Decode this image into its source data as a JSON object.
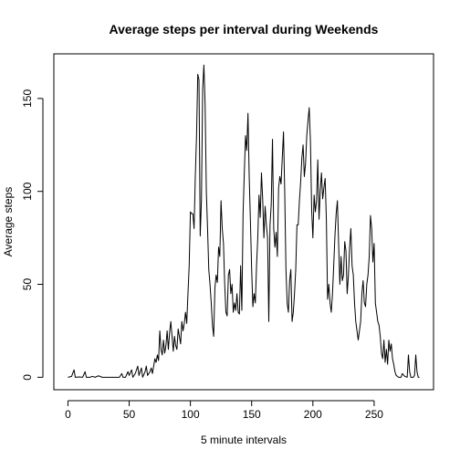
{
  "chart_data": {
    "type": "line",
    "title": "Average steps per interval during Weekends",
    "xlabel": "5 minute intervals",
    "ylabel": "Average steps",
    "xlim": [
      -11.5,
      298.5
    ],
    "ylim": [
      -6.7,
      174
    ],
    "xticks": [
      0,
      50,
      100,
      150,
      200,
      250
    ],
    "yticks": [
      0,
      50,
      100,
      150
    ],
    "grid": false,
    "legend": "none",
    "line_color": "#000000",
    "series": [
      {
        "points": [
          [
            0,
            0
          ],
          [
            3,
            0.5
          ],
          [
            5,
            4
          ],
          [
            6,
            0
          ],
          [
            9,
            0.2
          ],
          [
            12,
            0
          ],
          [
            14,
            3
          ],
          [
            15,
            0
          ],
          [
            18,
            0
          ],
          [
            20,
            0.5
          ],
          [
            22,
            0
          ],
          [
            25,
            0.8
          ],
          [
            28,
            0
          ],
          [
            32,
            0
          ],
          [
            37,
            0
          ],
          [
            42,
            0
          ],
          [
            44,
            2
          ],
          [
            45,
            0
          ],
          [
            47,
            0
          ],
          [
            49,
            3
          ],
          [
            50,
            1
          ],
          [
            52,
            4
          ],
          [
            53,
            0
          ],
          [
            55,
            2
          ],
          [
            57,
            6
          ],
          [
            58,
            1
          ],
          [
            60,
            5
          ],
          [
            61,
            0
          ],
          [
            63,
            3
          ],
          [
            64,
            6
          ],
          [
            65,
            1
          ],
          [
            67,
            3
          ],
          [
            68,
            5
          ],
          [
            69,
            2
          ],
          [
            70,
            6
          ],
          [
            71,
            10
          ],
          [
            72,
            8
          ],
          [
            73,
            12
          ],
          [
            74,
            9
          ],
          [
            75,
            25
          ],
          [
            76,
            15
          ],
          [
            77,
            12
          ],
          [
            78,
            20
          ],
          [
            79,
            13
          ],
          [
            80,
            17
          ],
          [
            81,
            25
          ],
          [
            82,
            15
          ],
          [
            83,
            24
          ],
          [
            84,
            30
          ],
          [
            85,
            22
          ],
          [
            86,
            14
          ],
          [
            87,
            22
          ],
          [
            88,
            17
          ],
          [
            89,
            15
          ],
          [
            90,
            26
          ],
          [
            91,
            22
          ],
          [
            92,
            18
          ],
          [
            93,
            30
          ],
          [
            94,
            25
          ],
          [
            95,
            29
          ],
          [
            96,
            35
          ],
          [
            97,
            29
          ],
          [
            98,
            45
          ],
          [
            99,
            60
          ],
          [
            100,
            89
          ],
          [
            101,
            88
          ],
          [
            102,
            88
          ],
          [
            103,
            80
          ],
          [
            104,
            108
          ],
          [
            105,
            130
          ],
          [
            106,
            163
          ],
          [
            107,
            160
          ],
          [
            108,
            76
          ],
          [
            109,
            95
          ],
          [
            110,
            155
          ],
          [
            111,
            168
          ],
          [
            112,
            147
          ],
          [
            113,
            100
          ],
          [
            114,
            80
          ],
          [
            115,
            58
          ],
          [
            116,
            50
          ],
          [
            117,
            40
          ],
          [
            118,
            28
          ],
          [
            119,
            22
          ],
          [
            120,
            48
          ],
          [
            121,
            55
          ],
          [
            122,
            51
          ],
          [
            123,
            70
          ],
          [
            124,
            65
          ],
          [
            125,
            95
          ],
          [
            126,
            80
          ],
          [
            127,
            72
          ],
          [
            128,
            50
          ],
          [
            129,
            35
          ],
          [
            130,
            33
          ],
          [
            131,
            55
          ],
          [
            132,
            58
          ],
          [
            133,
            45
          ],
          [
            134,
            50
          ],
          [
            135,
            35
          ],
          [
            136,
            40
          ],
          [
            137,
            36
          ],
          [
            138,
            45
          ],
          [
            139,
            35
          ],
          [
            140,
            34
          ],
          [
            141,
            60
          ],
          [
            142,
            36
          ],
          [
            143,
            88
          ],
          [
            144,
            110
          ],
          [
            145,
            130
          ],
          [
            146,
            122
          ],
          [
            147,
            142
          ],
          [
            148,
            108
          ],
          [
            149,
            84
          ],
          [
            150,
            58
          ],
          [
            151,
            38
          ],
          [
            152,
            45
          ],
          [
            153,
            40
          ],
          [
            154,
            60
          ],
          [
            155,
            75
          ],
          [
            156,
            98
          ],
          [
            157,
            86
          ],
          [
            158,
            110
          ],
          [
            159,
            96
          ],
          [
            160,
            75
          ],
          [
            161,
            92
          ],
          [
            162,
            82
          ],
          [
            163,
            75
          ],
          [
            164,
            30
          ],
          [
            165,
            82
          ],
          [
            166,
            93
          ],
          [
            167,
            128
          ],
          [
            168,
            80
          ],
          [
            169,
            70
          ],
          [
            170,
            78
          ],
          [
            171,
            65
          ],
          [
            172,
            102
          ],
          [
            173,
            108
          ],
          [
            174,
            104
          ],
          [
            175,
            118
          ],
          [
            176,
            132
          ],
          [
            177,
            100
          ],
          [
            178,
            58
          ],
          [
            179,
            40
          ],
          [
            180,
            35
          ],
          [
            181,
            52
          ],
          [
            182,
            58
          ],
          [
            183,
            30
          ],
          [
            184,
            35
          ],
          [
            185,
            45
          ],
          [
            186,
            58
          ],
          [
            187,
            82
          ],
          [
            188,
            82
          ],
          [
            189,
            95
          ],
          [
            190,
            105
          ],
          [
            191,
            118
          ],
          [
            192,
            125
          ],
          [
            193,
            108
          ],
          [
            194,
            115
          ],
          [
            195,
            130
          ],
          [
            196,
            138
          ],
          [
            197,
            145
          ],
          [
            198,
            127
          ],
          [
            199,
            90
          ],
          [
            200,
            75
          ],
          [
            201,
            98
          ],
          [
            202,
            89
          ],
          [
            203,
            95
          ],
          [
            204,
            117
          ],
          [
            205,
            85
          ],
          [
            206,
            100
          ],
          [
            207,
            110
          ],
          [
            208,
            96
          ],
          [
            209,
            102
          ],
          [
            210,
            107
          ],
          [
            211,
            85
          ],
          [
            212,
            42
          ],
          [
            213,
            50
          ],
          [
            214,
            40
          ],
          [
            215,
            35
          ],
          [
            216,
            45
          ],
          [
            217,
            60
          ],
          [
            218,
            76
          ],
          [
            219,
            88
          ],
          [
            220,
            95
          ],
          [
            221,
            72
          ],
          [
            222,
            50
          ],
          [
            223,
            65
          ],
          [
            224,
            52
          ],
          [
            225,
            55
          ],
          [
            226,
            73
          ],
          [
            227,
            68
          ],
          [
            228,
            45
          ],
          [
            229,
            55
          ],
          [
            230,
            70
          ],
          [
            231,
            80
          ],
          [
            232,
            60
          ],
          [
            233,
            55
          ],
          [
            234,
            40
          ],
          [
            235,
            30
          ],
          [
            236,
            25
          ],
          [
            237,
            20
          ],
          [
            238,
            25
          ],
          [
            239,
            30
          ],
          [
            240,
            45
          ],
          [
            241,
            52
          ],
          [
            242,
            40
          ],
          [
            243,
            38
          ],
          [
            244,
            50
          ],
          [
            245,
            55
          ],
          [
            246,
            65
          ],
          [
            247,
            87
          ],
          [
            248,
            80
          ],
          [
            249,
            62
          ],
          [
            250,
            72
          ],
          [
            251,
            40
          ],
          [
            252,
            35
          ],
          [
            253,
            30
          ],
          [
            254,
            28
          ],
          [
            255,
            22
          ],
          [
            256,
            13
          ],
          [
            257,
            10
          ],
          [
            258,
            20
          ],
          [
            259,
            8
          ],
          [
            260,
            15
          ],
          [
            261,
            7
          ],
          [
            262,
            20
          ],
          [
            263,
            14
          ],
          [
            264,
            18
          ],
          [
            265,
            10
          ],
          [
            266,
            7
          ],
          [
            267,
            3
          ],
          [
            268,
            1
          ],
          [
            270,
            0
          ],
          [
            272,
            0
          ],
          [
            273,
            2
          ],
          [
            275,
            0.5
          ],
          [
            277,
            0
          ],
          [
            278,
            12
          ],
          [
            279,
            3
          ],
          [
            280,
            0
          ],
          [
            282,
            0
          ],
          [
            283,
            1
          ],
          [
            284,
            12
          ],
          [
            285,
            3
          ],
          [
            286,
            0
          ],
          [
            287,
            0
          ]
        ]
      }
    ]
  }
}
